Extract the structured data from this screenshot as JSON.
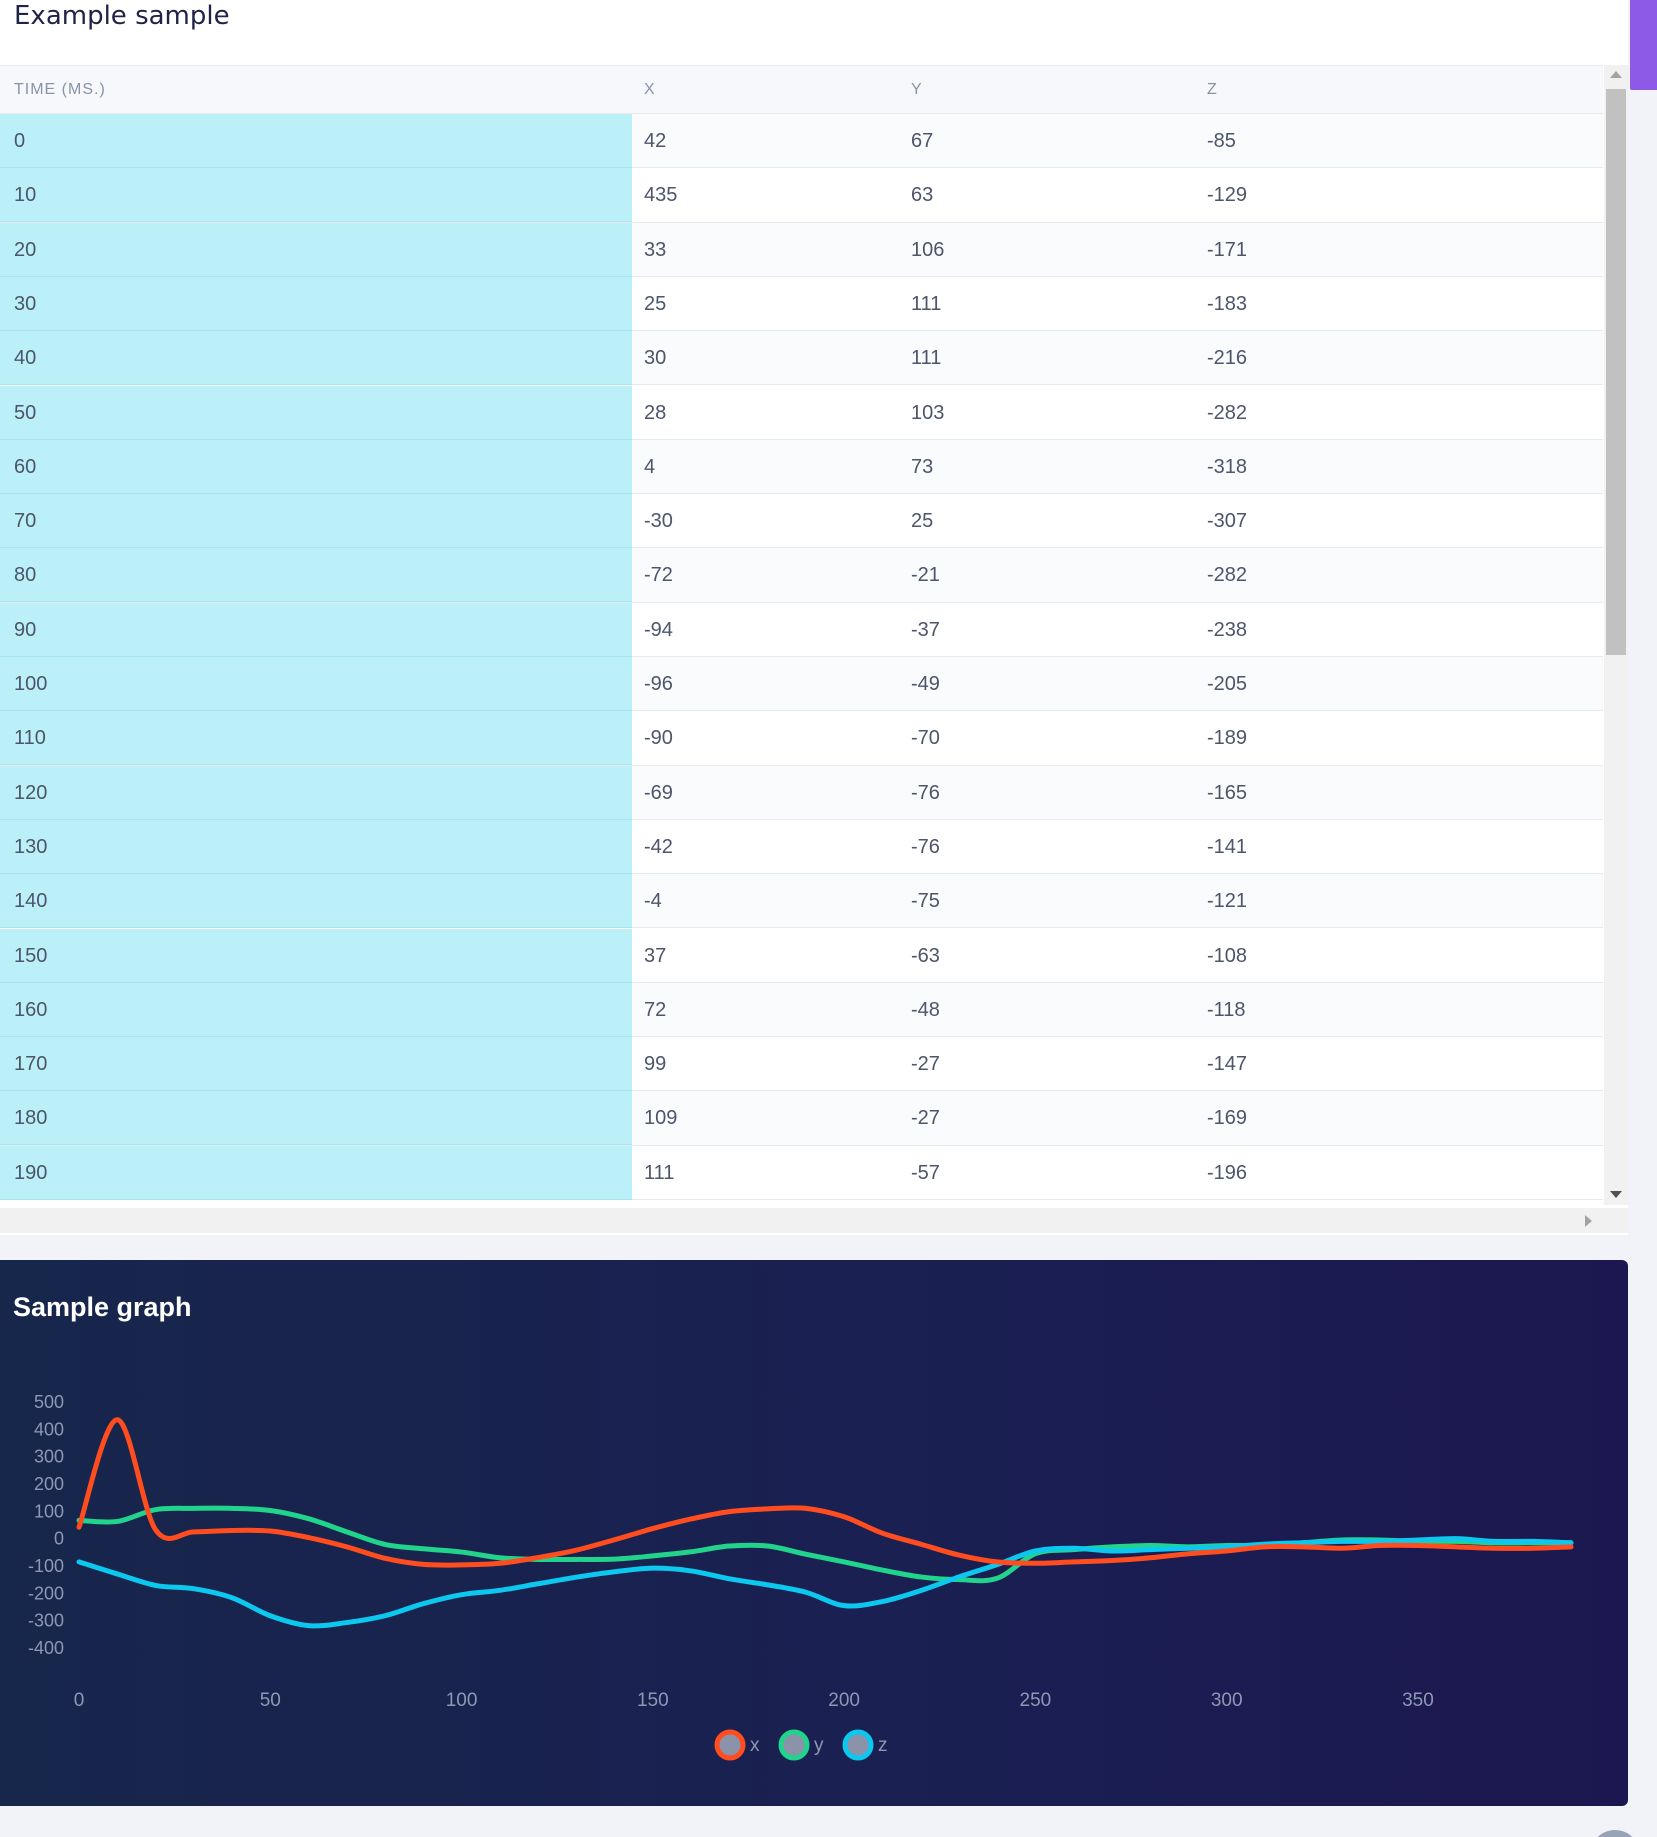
{
  "sample": {
    "title": "Example sample",
    "columns": [
      "TIME (MS.)",
      "X",
      "Y",
      "Z"
    ],
    "rows": [
      [
        "0",
        "42",
        "67",
        "-85"
      ],
      [
        "10",
        "435",
        "63",
        "-129"
      ],
      [
        "20",
        "33",
        "106",
        "-171"
      ],
      [
        "30",
        "25",
        "111",
        "-183"
      ],
      [
        "40",
        "30",
        "111",
        "-216"
      ],
      [
        "50",
        "28",
        "103",
        "-282"
      ],
      [
        "60",
        "4",
        "73",
        "-318"
      ],
      [
        "70",
        "-30",
        "25",
        "-307"
      ],
      [
        "80",
        "-72",
        "-21",
        "-282"
      ],
      [
        "90",
        "-94",
        "-37",
        "-238"
      ],
      [
        "100",
        "-96",
        "-49",
        "-205"
      ],
      [
        "110",
        "-90",
        "-70",
        "-189"
      ],
      [
        "120",
        "-69",
        "-76",
        "-165"
      ],
      [
        "130",
        "-42",
        "-76",
        "-141"
      ],
      [
        "140",
        "-4",
        "-75",
        "-121"
      ],
      [
        "150",
        "37",
        "-63",
        "-108"
      ],
      [
        "160",
        "72",
        "-48",
        "-118"
      ],
      [
        "170",
        "99",
        "-27",
        "-147"
      ],
      [
        "180",
        "109",
        "-27",
        "-169"
      ],
      [
        "190",
        "111",
        "-57",
        "-196"
      ]
    ]
  },
  "graph": {
    "title": "Sample graph"
  },
  "chart_data": {
    "type": "line",
    "title": "",
    "xlabel": "",
    "ylabel": "",
    "xlim": [
      0,
      390
    ],
    "ylim": [
      -400,
      500
    ],
    "x_ticks": [
      "0",
      "50",
      "100",
      "150",
      "200",
      "250",
      "300",
      "350"
    ],
    "y_ticks": [
      "500",
      "400",
      "300",
      "200",
      "100",
      "0",
      "-100",
      "-200",
      "-300",
      "-400"
    ],
    "grid": false,
    "legend_position": "bottom-center",
    "x": [
      0,
      10,
      20,
      30,
      40,
      50,
      60,
      70,
      80,
      90,
      100,
      110,
      120,
      130,
      140,
      150,
      160,
      170,
      180,
      190,
      200,
      210,
      220,
      230,
      240,
      250,
      260,
      270,
      280,
      290,
      300,
      310,
      320,
      330,
      340,
      350,
      360,
      370,
      380,
      390
    ],
    "series": [
      {
        "name": "x",
        "color": "#ff4d1f",
        "values": [
          42,
          435,
          33,
          25,
          30,
          28,
          4,
          -30,
          -72,
          -94,
          -96,
          -90,
          -69,
          -42,
          -4,
          37,
          72,
          99,
          109,
          111,
          80,
          20,
          -20,
          -60,
          -85,
          -90,
          -85,
          -80,
          -70,
          -55,
          -45,
          -30,
          -30,
          -35,
          -25,
          -25,
          -30,
          -35,
          -35,
          -30
        ]
      },
      {
        "name": "y",
        "color": "#22d38c",
        "values": [
          67,
          63,
          106,
          111,
          111,
          103,
          73,
          25,
          -21,
          -37,
          -49,
          -70,
          -76,
          -76,
          -75,
          -63,
          -48,
          -27,
          -27,
          -57,
          -85,
          -115,
          -140,
          -150,
          -145,
          -55,
          -40,
          -30,
          -25,
          -30,
          -25,
          -25,
          -15,
          -5,
          -5,
          -10,
          -10,
          -15,
          -15,
          -15
        ]
      },
      {
        "name": "z",
        "color": "#0cc7ee",
        "values": [
          -85,
          -129,
          -171,
          -183,
          -216,
          -282,
          -318,
          -307,
          -282,
          -238,
          -205,
          -189,
          -165,
          -141,
          -121,
          -108,
          -118,
          -147,
          -169,
          -196,
          -245,
          -230,
          -190,
          -140,
          -95,
          -45,
          -35,
          -45,
          -40,
          -35,
          -30,
          -20,
          -15,
          -10,
          -10,
          -5,
          0,
          -10,
          -10,
          -15
        ]
      }
    ]
  }
}
